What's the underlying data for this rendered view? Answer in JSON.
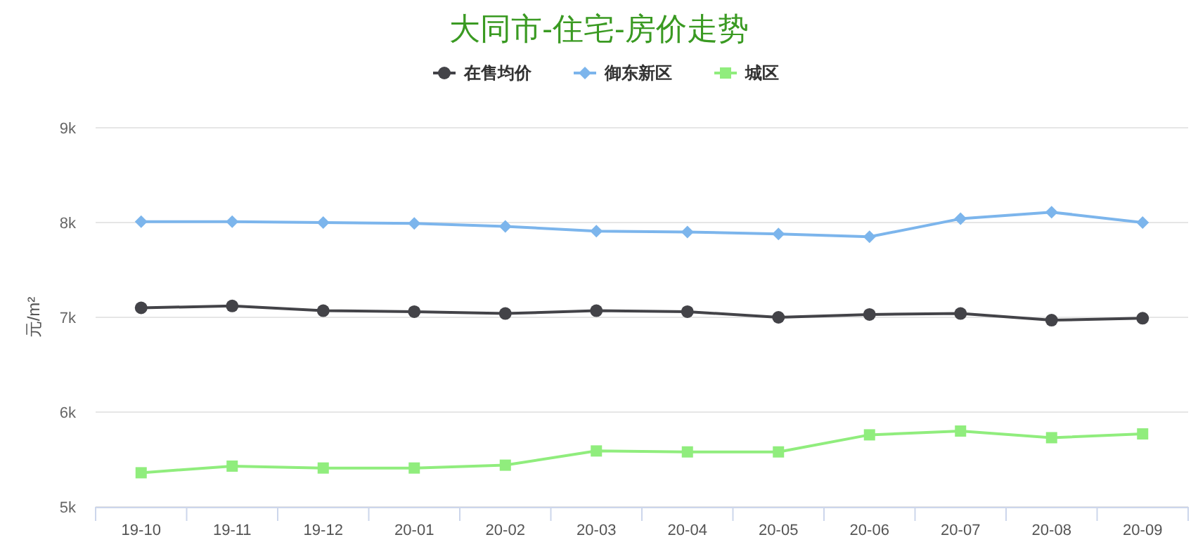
{
  "chart_data": {
    "type": "line",
    "title": "大同市-住宅-房价走势",
    "ylabel": "元/m²",
    "categories": [
      "19-10",
      "19-11",
      "19-12",
      "20-01",
      "20-02",
      "20-03",
      "20-04",
      "20-05",
      "20-06",
      "20-07",
      "20-08",
      "20-09"
    ],
    "series": [
      {
        "name": "在售均价",
        "color": "#434348",
        "marker": "circle",
        "values": [
          7100,
          7120,
          7070,
          7060,
          7040,
          7070,
          7060,
          7000,
          7030,
          7040,
          6970,
          6990
        ]
      },
      {
        "name": "御东新区",
        "color": "#7cb5ec",
        "marker": "diamond",
        "values": [
          8010,
          8010,
          8000,
          7990,
          7960,
          7910,
          7900,
          7880,
          7850,
          8040,
          8110,
          8000
        ]
      },
      {
        "name": "城区",
        "color": "#90ed7d",
        "marker": "square",
        "values": [
          5360,
          5430,
          5410,
          5410,
          5440,
          5590,
          5580,
          5580,
          5760,
          5800,
          5730,
          5770
        ]
      }
    ],
    "ylim": [
      5000,
      9000
    ],
    "yticks": [
      {
        "value": 5000,
        "label": "5k"
      },
      {
        "value": 6000,
        "label": "6k"
      },
      {
        "value": 7000,
        "label": "7k"
      },
      {
        "value": 8000,
        "label": "8k"
      },
      {
        "value": 9000,
        "label": "9k"
      }
    ],
    "grid": "y",
    "legend": "top"
  }
}
